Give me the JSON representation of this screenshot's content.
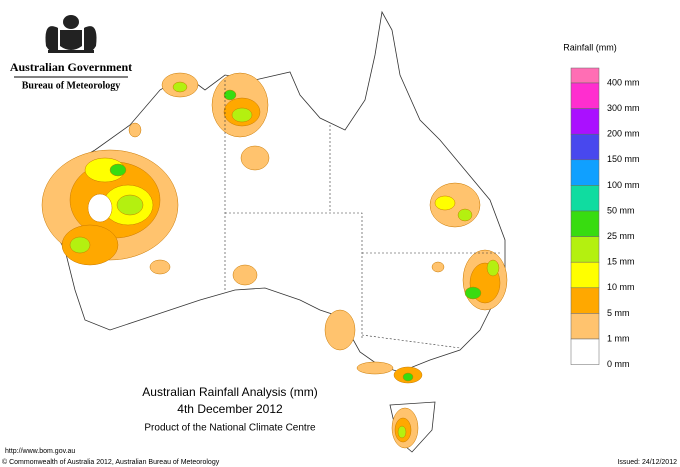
{
  "header": {
    "government": "Australian Government",
    "bureau": "Bureau of Meteorology"
  },
  "title": {
    "lines": [
      "Australian Rainfall Analysis (mm)",
      "4th December 2012",
      "Product of the National Climate Centre"
    ]
  },
  "legend": {
    "title": "Rainfall (mm)",
    "top_color": "#ff6eb4",
    "items": [
      {
        "label": "400 mm",
        "color": "#ff2ecf"
      },
      {
        "label": "300 mm",
        "color": "#aa10ff"
      },
      {
        "label": "200 mm",
        "color": "#4848ee"
      },
      {
        "label": "150 mm",
        "color": "#10a0ff"
      },
      {
        "label": "100 mm",
        "color": "#10dca0"
      },
      {
        "label": "50 mm",
        "color": "#38dc10"
      },
      {
        "label": "25 mm",
        "color": "#b4f010"
      },
      {
        "label": "15 mm",
        "color": "#ffff00"
      },
      {
        "label": "10 mm",
        "color": "#ffa800"
      },
      {
        "label": "5 mm",
        "color": "#ffc36e"
      },
      {
        "label": "1 mm",
        "color": "#ffffff"
      }
    ],
    "last_label": "0 mm"
  },
  "footer": {
    "url": "http://www.bom.gov.au",
    "copyright": "© Commonwealth of Australia 2012, Australian Bureau of Meteorology",
    "issued": "Issued: 24/12/2012"
  }
}
